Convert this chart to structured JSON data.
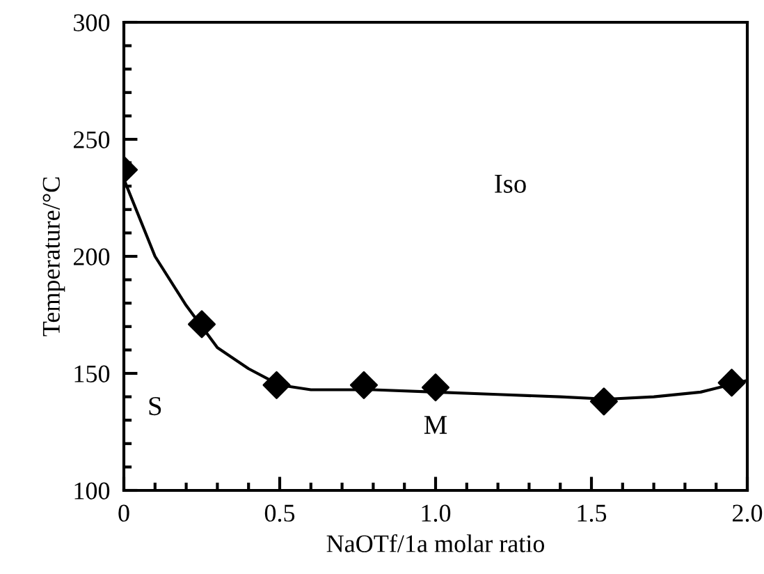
{
  "chart_data": {
    "type": "scatter",
    "xlabel": "NaOTf/1a molar ratio",
    "ylabel": "Temperature/°C",
    "series": [
      {
        "color": "#000000",
        "marker": "diamond",
        "x": [
          0,
          0.25,
          0.49,
          0.77,
          1.0,
          1.54,
          1.95
        ],
        "values": [
          237,
          171,
          145,
          145,
          144,
          138,
          146
        ]
      },
      {
        "type": "line",
        "color": "#000000",
        "marker": "none",
        "line_style": "solid",
        "x": [
          0,
          0.1,
          0.2,
          0.3,
          0.4,
          0.5,
          0.6,
          0.8,
          1.0,
          1.2,
          1.4,
          1.55,
          1.7,
          1.85,
          2.0
        ],
        "values": [
          233,
          200,
          179,
          161,
          152,
          145,
          143,
          143,
          142,
          141,
          140,
          139,
          140,
          142,
          147
        ]
      }
    ],
    "annotations": [
      "Iso",
      "S",
      "M"
    ],
    "xlim": [
      0,
      2.0
    ],
    "ylim": [
      100,
      300
    ],
    "xticks": [
      {
        "value": 0,
        "label": "0"
      },
      0.5,
      {
        "value": 1.0,
        "label": "1.0"
      },
      1.5,
      {
        "value": 2.0,
        "label": "2.0"
      }
    ],
    "yticks": [
      100,
      150,
      200,
      250,
      300
    ],
    "grid": false,
    "legend": false
  }
}
